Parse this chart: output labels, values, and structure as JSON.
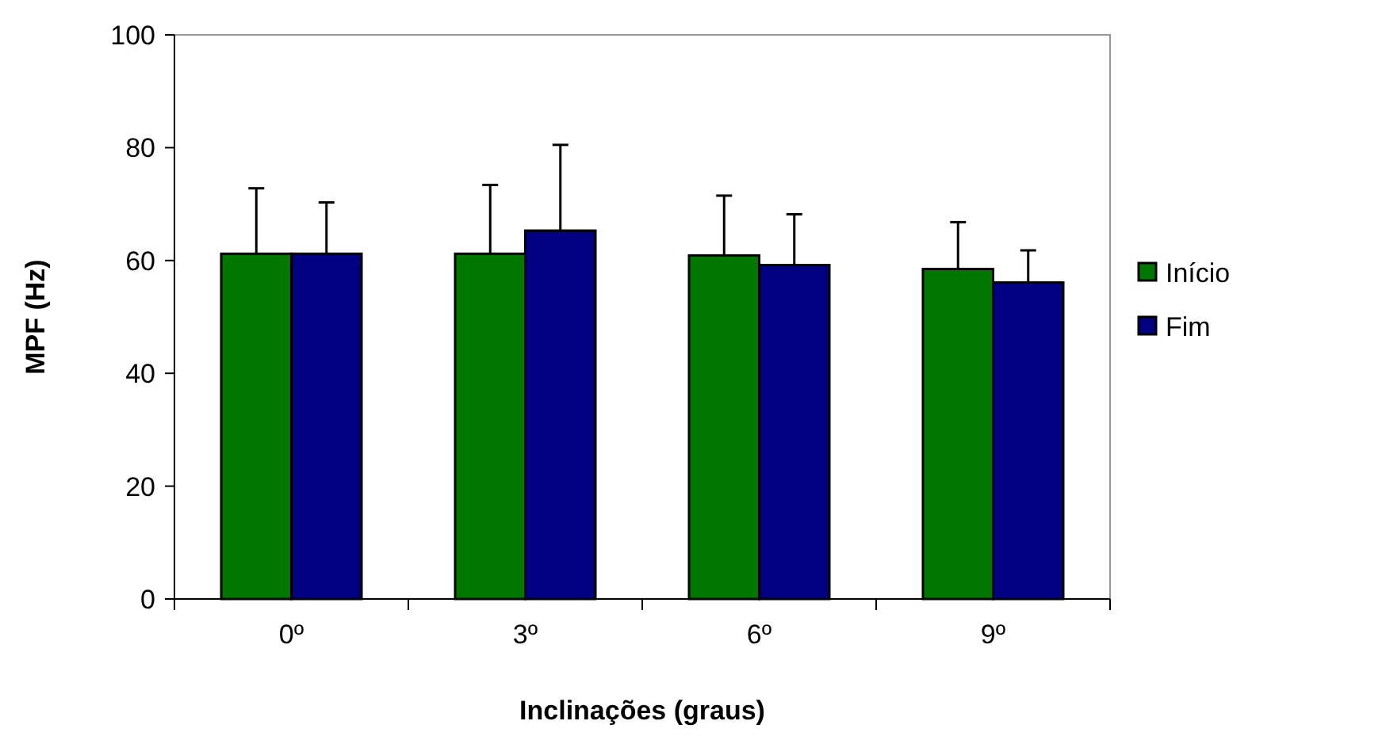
{
  "chart_data": {
    "type": "bar",
    "xlabel": "Inclinações (graus)",
    "ylabel": "MPF (Hz)",
    "categories": [
      "0º",
      "3º",
      "6º",
      "9º"
    ],
    "series": [
      {
        "name": "Início",
        "color": "#007800",
        "values": [
          61.2,
          61.2,
          60.9,
          58.5
        ],
        "errors": [
          11.6,
          12.2,
          10.6,
          8.3
        ]
      },
      {
        "name": "Fim",
        "color": "#000080",
        "values": [
          61.2,
          65.3,
          59.2,
          56.1
        ],
        "errors": [
          9.1,
          15.2,
          9.0,
          5.7
        ]
      }
    ],
    "ylim": [
      0,
      100
    ],
    "yticks": [
      0,
      20,
      40,
      60,
      80,
      100
    ],
    "grid": false,
    "legend": "right"
  }
}
